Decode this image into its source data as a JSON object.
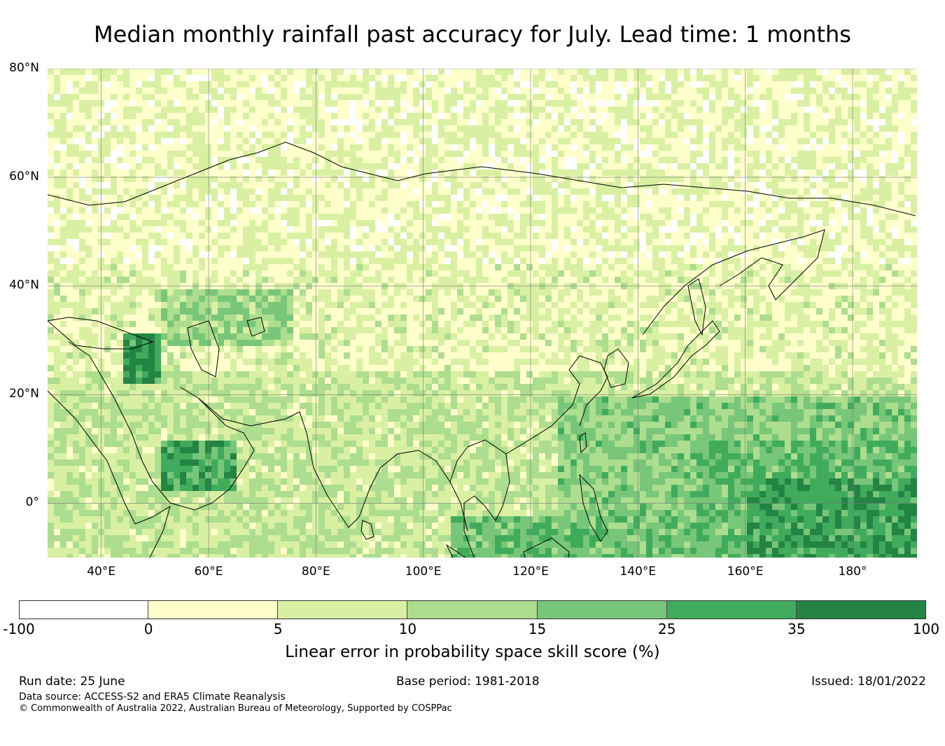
{
  "title": "Median monthly rainfall past accuracy for July. Lead time: 1 months",
  "map": {
    "lon_range": [
      30,
      192
    ],
    "lat_range": [
      -10,
      80
    ],
    "lat_ticks": [
      {
        "value": 80,
        "label": "80°N"
      },
      {
        "value": 60,
        "label": "60°N"
      },
      {
        "value": 40,
        "label": "40°N"
      },
      {
        "value": 20,
        "label": "20°N"
      },
      {
        "value": 0,
        "label": "0°"
      }
    ],
    "lon_ticks": [
      {
        "value": 40,
        "label": "40°E"
      },
      {
        "value": 60,
        "label": "60°E"
      },
      {
        "value": 80,
        "label": "80°E"
      },
      {
        "value": 100,
        "label": "100°E"
      },
      {
        "value": 120,
        "label": "120°E"
      },
      {
        "value": 140,
        "label": "140°E"
      },
      {
        "value": 160,
        "label": "160°E"
      },
      {
        "value": 180,
        "label": "180°"
      }
    ],
    "gridlines": true,
    "coastline_color": "#000000"
  },
  "colorbar": {
    "label": "Linear error in probability space skill score (%)",
    "ticks": [
      "-100",
      "0",
      "5",
      "10",
      "15",
      "25",
      "35",
      "100"
    ],
    "bins": [
      {
        "from": -100,
        "to": 0,
        "color": "#ffffff"
      },
      {
        "from": 0,
        "to": 5,
        "color": "#ffffcc"
      },
      {
        "from": 5,
        "to": 10,
        "color": "#d9f0a3"
      },
      {
        "from": 10,
        "to": 15,
        "color": "#addd8e"
      },
      {
        "from": 15,
        "to": 25,
        "color": "#78c679"
      },
      {
        "from": 25,
        "to": 35,
        "color": "#41ab5d"
      },
      {
        "from": 35,
        "to": 100,
        "color": "#238443"
      }
    ]
  },
  "footer": {
    "run_date": "Run date: 25 June",
    "base_period": "Base period: 1981-2018",
    "issued": "Issued: 18/01/2022",
    "data_source": "Data source: ACCESS-S2 and ERA5 Climate Reanalysis",
    "copyright": "© Commonwealth of Australia 2022, Australian Bureau of Meteorology, Supported by COSPPac"
  }
}
